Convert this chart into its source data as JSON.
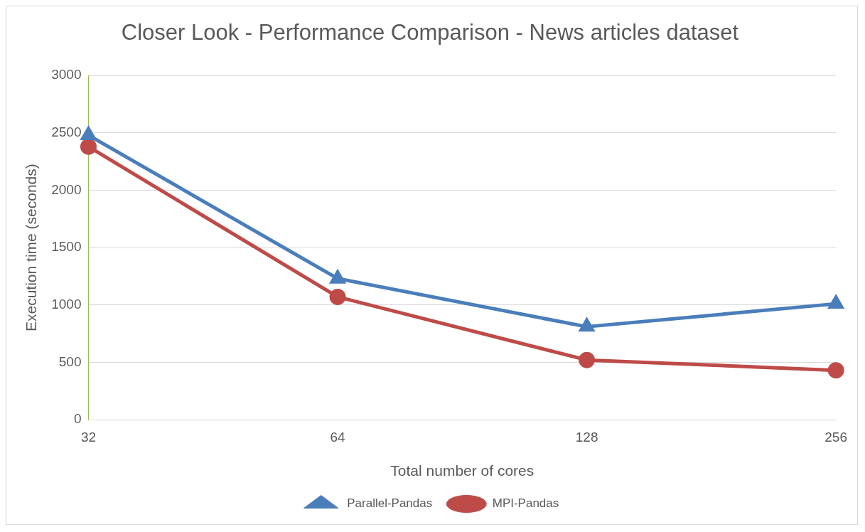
{
  "chart_data": {
    "type": "line",
    "title": "Closer Look - Performance Comparison - News articles dataset",
    "xlabel": "Total number of cores",
    "ylabel": "Execution time (seconds)",
    "categories": [
      "32",
      "64",
      "128",
      "256"
    ],
    "series": [
      {
        "name": "Parallel-Pandas",
        "color": "#4a7ebb",
        "marker": "triangle",
        "values": [
          2480,
          1230,
          810,
          1010
        ]
      },
      {
        "name": "MPI-Pandas",
        "color": "#be4b48",
        "marker": "circle",
        "values": [
          2380,
          1070,
          520,
          430
        ]
      }
    ],
    "ylim": [
      0,
      3000
    ],
    "yticks": [
      0,
      500,
      1000,
      1500,
      2000,
      2500,
      3000
    ],
    "grid": "y",
    "legend": "bottom"
  }
}
